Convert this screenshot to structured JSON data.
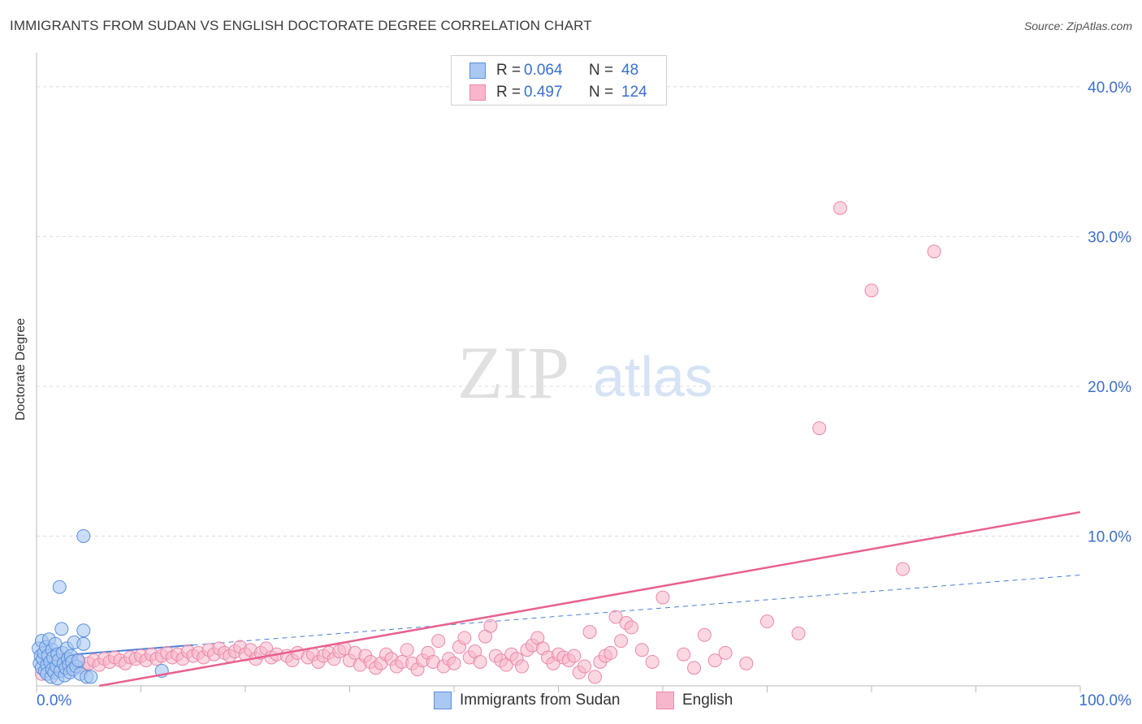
{
  "header": {
    "title": "IMMIGRANTS FROM SUDAN VS ENGLISH DOCTORATE DEGREE CORRELATION CHART",
    "source": "Source: ZipAtlas.com"
  },
  "watermark": {
    "zip": "ZIP",
    "atlas": "atlas"
  },
  "stats": [
    {
      "r_label": "R =",
      "r_value": "0.064",
      "n_label": "N =",
      "n_value": "48"
    },
    {
      "r_label": "R =",
      "r_value": "0.497",
      "n_label": "N =",
      "n_value": "124"
    }
  ],
  "legend": [
    "Immigrants from Sudan",
    "English"
  ],
  "colors": {
    "blue_fill": "#a9c8f2",
    "blue_stroke": "#5b8fdc",
    "blue_line": "#4a7fd6",
    "pink_fill": "#f7b6cb",
    "pink_stroke": "#e989a9",
    "pink_line": "#e8608f",
    "tick_label": "#3a6fd0",
    "grid": "#dcdcdc"
  },
  "chart_data": {
    "type": "scatter",
    "title": "IMMIGRANTS FROM SUDAN VS ENGLISH DOCTORATE DEGREE CORRELATION CHART",
    "xlabel": "",
    "ylabel": "Doctorate Degree",
    "xlim": [
      0,
      100
    ],
    "ylim": [
      0,
      42
    ],
    "x_tick_labels": [
      "0.0%",
      "100.0%"
    ],
    "y_ticks": [
      10,
      20,
      30,
      40
    ],
    "y_tick_labels": [
      "10.0%",
      "20.0%",
      "30.0%",
      "40.0%"
    ],
    "grid": true,
    "series": [
      {
        "name": "Immigrants from Sudan",
        "R": 0.064,
        "N": 48,
        "trend": {
          "x0": 0,
          "y0": 1.9,
          "x1": 100,
          "y1": 7.4,
          "solid_until": 15
        },
        "points": [
          [
            0.2,
            2.5
          ],
          [
            0.3,
            1.5
          ],
          [
            0.4,
            2.0
          ],
          [
            0.5,
            1.2
          ],
          [
            0.5,
            3.0
          ],
          [
            0.6,
            1.8
          ],
          [
            0.7,
            2.2
          ],
          [
            0.8,
            1.0
          ],
          [
            0.9,
            2.6
          ],
          [
            1.0,
            1.4
          ],
          [
            1.0,
            0.8
          ],
          [
            1.1,
            2.0
          ],
          [
            1.2,
            3.1
          ],
          [
            1.3,
            1.6
          ],
          [
            1.4,
            0.6
          ],
          [
            1.5,
            2.4
          ],
          [
            1.5,
            1.1
          ],
          [
            1.6,
            1.9
          ],
          [
            1.7,
            0.9
          ],
          [
            1.8,
            2.8
          ],
          [
            1.9,
            1.3
          ],
          [
            2.0,
            2.1
          ],
          [
            2.0,
            0.5
          ],
          [
            2.1,
            1.7
          ],
          [
            2.2,
            6.6
          ],
          [
            2.3,
            1.0
          ],
          [
            2.4,
            3.8
          ],
          [
            2.5,
            2.2
          ],
          [
            2.6,
            1.5
          ],
          [
            2.7,
            0.7
          ],
          [
            2.8,
            1.2
          ],
          [
            2.9,
            2.5
          ],
          [
            3.0,
            1.8
          ],
          [
            3.1,
            1.4
          ],
          [
            3.2,
            0.9
          ],
          [
            3.3,
            2.0
          ],
          [
            3.4,
            1.6
          ],
          [
            3.5,
            1.1
          ],
          [
            3.6,
            2.9
          ],
          [
            3.8,
            1.3
          ],
          [
            4.0,
            1.7
          ],
          [
            4.2,
            0.8
          ],
          [
            4.5,
            2.8
          ],
          [
            4.5,
            10.0
          ],
          [
            4.5,
            3.7
          ],
          [
            4.8,
            0.6
          ],
          [
            5.2,
            0.6
          ],
          [
            12.0,
            1.0
          ]
        ]
      },
      {
        "name": "English",
        "R": 0.497,
        "N": 124,
        "trend": {
          "x0": 6,
          "y0": 0,
          "x1": 100,
          "y1": 11.6
        },
        "points": [
          [
            0.5,
            0.8
          ],
          [
            1.0,
            1.2
          ],
          [
            1.5,
            1.0
          ],
          [
            2.0,
            1.4
          ],
          [
            2.5,
            1.1
          ],
          [
            3.0,
            1.5
          ],
          [
            3.5,
            1.3
          ],
          [
            4.0,
            1.6
          ],
          [
            4.5,
            1.2
          ],
          [
            5.0,
            1.5
          ],
          [
            5.5,
            1.7
          ],
          [
            6.0,
            1.4
          ],
          [
            6.5,
            1.8
          ],
          [
            7.0,
            1.6
          ],
          [
            7.5,
            1.9
          ],
          [
            8.0,
            1.7
          ],
          [
            8.5,
            1.5
          ],
          [
            9.0,
            1.9
          ],
          [
            9.5,
            1.8
          ],
          [
            10.0,
            2.0
          ],
          [
            10.5,
            1.7
          ],
          [
            11.0,
            2.1
          ],
          [
            11.5,
            1.8
          ],
          [
            12.0,
            2.0
          ],
          [
            12.5,
            2.2
          ],
          [
            13.0,
            1.9
          ],
          [
            13.5,
            2.1
          ],
          [
            14.0,
            1.8
          ],
          [
            14.5,
            2.3
          ],
          [
            15.0,
            2.0
          ],
          [
            15.5,
            2.2
          ],
          [
            16.0,
            1.9
          ],
          [
            16.5,
            2.4
          ],
          [
            17.0,
            2.1
          ],
          [
            17.5,
            2.5
          ],
          [
            18.0,
            2.2
          ],
          [
            18.5,
            2.0
          ],
          [
            19.0,
            2.3
          ],
          [
            19.5,
            2.6
          ],
          [
            20.0,
            2.1
          ],
          [
            20.5,
            2.4
          ],
          [
            21.0,
            1.8
          ],
          [
            21.5,
            2.2
          ],
          [
            22.0,
            2.5
          ],
          [
            22.5,
            1.9
          ],
          [
            23.0,
            2.1
          ],
          [
            24.0,
            2.0
          ],
          [
            24.5,
            1.7
          ],
          [
            25.0,
            2.2
          ],
          [
            26.0,
            1.9
          ],
          [
            26.5,
            2.1
          ],
          [
            27.0,
            1.6
          ],
          [
            27.5,
            2.0
          ],
          [
            28.0,
            2.2
          ],
          [
            28.5,
            1.8
          ],
          [
            29.0,
            2.3
          ],
          [
            29.5,
            2.5
          ],
          [
            30.0,
            1.7
          ],
          [
            30.5,
            2.2
          ],
          [
            31.0,
            1.4
          ],
          [
            31.5,
            2.0
          ],
          [
            32.0,
            1.6
          ],
          [
            32.5,
            1.2
          ],
          [
            33.0,
            1.5
          ],
          [
            33.5,
            2.1
          ],
          [
            34.0,
            1.8
          ],
          [
            34.5,
            1.3
          ],
          [
            35.0,
            1.6
          ],
          [
            35.5,
            2.4
          ],
          [
            36.0,
            1.5
          ],
          [
            36.5,
            1.1
          ],
          [
            37.0,
            1.7
          ],
          [
            37.5,
            2.2
          ],
          [
            38.0,
            1.6
          ],
          [
            38.5,
            3.0
          ],
          [
            39.0,
            1.3
          ],
          [
            39.5,
            1.8
          ],
          [
            40.0,
            1.5
          ],
          [
            40.5,
            2.6
          ],
          [
            41.0,
            3.2
          ],
          [
            41.5,
            1.9
          ],
          [
            42.0,
            2.3
          ],
          [
            42.5,
            1.6
          ],
          [
            43.0,
            3.3
          ],
          [
            43.5,
            4.0
          ],
          [
            44.0,
            2.0
          ],
          [
            44.5,
            1.7
          ],
          [
            45.0,
            1.4
          ],
          [
            45.5,
            2.1
          ],
          [
            46.0,
            1.8
          ],
          [
            46.5,
            1.3
          ],
          [
            47.0,
            2.4
          ],
          [
            47.5,
            2.7
          ],
          [
            48.0,
            3.2
          ],
          [
            48.5,
            2.5
          ],
          [
            49.0,
            1.9
          ],
          [
            49.5,
            1.5
          ],
          [
            50.0,
            2.1
          ],
          [
            50.5,
            1.9
          ],
          [
            51.0,
            1.7
          ],
          [
            51.5,
            2.0
          ],
          [
            52.0,
            0.9
          ],
          [
            52.5,
            1.3
          ],
          [
            53.0,
            3.6
          ],
          [
            53.5,
            0.6
          ],
          [
            54.0,
            1.6
          ],
          [
            54.5,
            2.0
          ],
          [
            55.0,
            2.2
          ],
          [
            55.5,
            4.6
          ],
          [
            56.0,
            3.0
          ],
          [
            56.5,
            4.2
          ],
          [
            57.0,
            3.9
          ],
          [
            58.0,
            2.4
          ],
          [
            59.0,
            1.6
          ],
          [
            60.0,
            5.9
          ],
          [
            62.0,
            2.1
          ],
          [
            63.0,
            1.2
          ],
          [
            64.0,
            3.4
          ],
          [
            65.0,
            1.7
          ],
          [
            66.0,
            2.2
          ],
          [
            68.0,
            1.5
          ],
          [
            70.0,
            4.3
          ],
          [
            73.0,
            3.5
          ],
          [
            75.0,
            17.2
          ],
          [
            77.0,
            31.9
          ],
          [
            80.0,
            26.4
          ],
          [
            86.0,
            29.0
          ],
          [
            83.0,
            7.8
          ]
        ]
      }
    ]
  }
}
